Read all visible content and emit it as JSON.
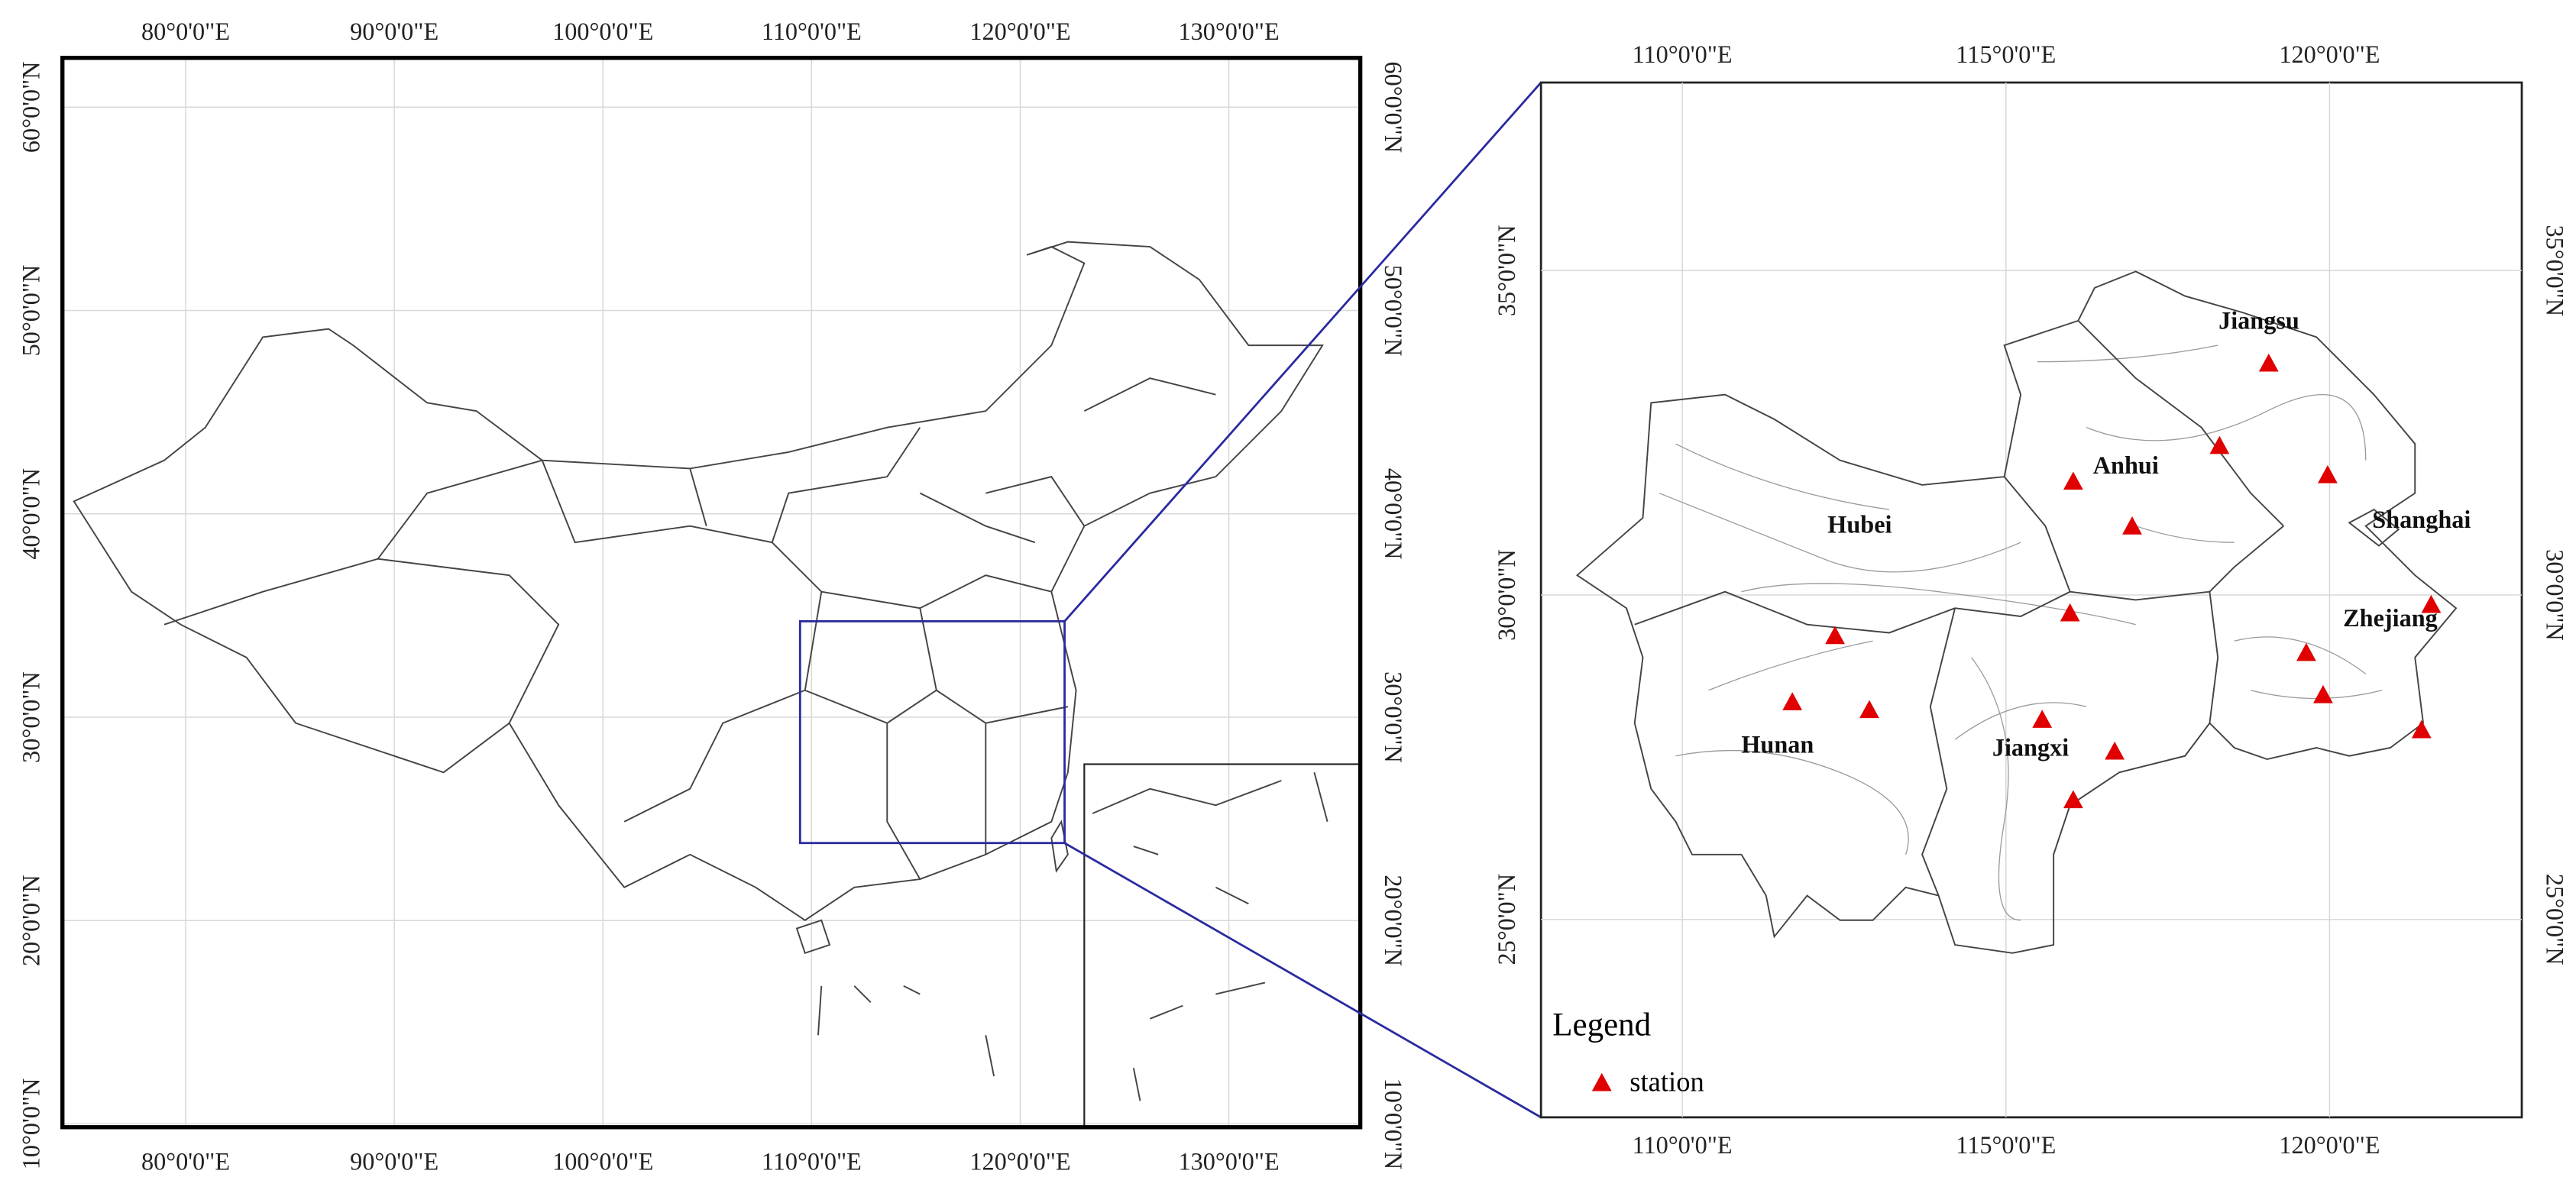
{
  "left_map": {
    "x_labels": [
      {
        "value": 80,
        "label": "80°0'0\"E"
      },
      {
        "value": 90,
        "label": "90°0'0\"E"
      },
      {
        "value": 100,
        "label": "100°0'0\"E"
      },
      {
        "value": 110,
        "label": "110°0'0\"E"
      },
      {
        "value": 120,
        "label": "120°0'0\"E"
      },
      {
        "value": 130,
        "label": "130°0'0\"E"
      }
    ],
    "y_labels": [
      {
        "value": 10,
        "label": "10°0'0\"N"
      },
      {
        "value": 20,
        "label": "20°0'0\"N"
      },
      {
        "value": 30,
        "label": "30°0'0\"N"
      },
      {
        "value": 40,
        "label": "40°0'0\"N"
      },
      {
        "value": 50,
        "label": "50°0'0\"N"
      },
      {
        "value": 60,
        "label": "60°0'0\"N"
      }
    ]
  },
  "right_map": {
    "x_labels": [
      {
        "value": 110,
        "label": "110°0'0\"E"
      },
      {
        "value": 115,
        "label": "115°0'0\"E"
      },
      {
        "value": 120,
        "label": "120°0'0\"E"
      }
    ],
    "y_labels": [
      {
        "value": 25,
        "label": "25°0'0\"N"
      },
      {
        "value": 30,
        "label": "30°0'0\"N"
      },
      {
        "value": 35,
        "label": "35°0'0\"N"
      }
    ],
    "provinces": [
      "Jiangsu",
      "Anhui",
      "Hubei",
      "Shanghai",
      "Zhejiang",
      "Hunan",
      "Jiangxi"
    ],
    "stations": [
      {
        "lon": 119.06,
        "lat": 33.57
      },
      {
        "lon": 118.3,
        "lat": 32.3
      },
      {
        "lon": 119.97,
        "lat": 31.85
      },
      {
        "lon": 116.04,
        "lat": 31.75
      },
      {
        "lon": 116.95,
        "lat": 31.06
      },
      {
        "lon": 115.99,
        "lat": 29.72
      },
      {
        "lon": 112.36,
        "lat": 29.37
      },
      {
        "lon": 111.7,
        "lat": 28.35
      },
      {
        "lon": 112.89,
        "lat": 28.23
      },
      {
        "lon": 115.56,
        "lat": 28.08
      },
      {
        "lon": 116.68,
        "lat": 27.59
      },
      {
        "lon": 116.04,
        "lat": 26.84
      },
      {
        "lon": 121.57,
        "lat": 29.85
      },
      {
        "lon": 119.64,
        "lat": 29.11
      },
      {
        "lon": 119.9,
        "lat": 28.46
      },
      {
        "lon": 121.42,
        "lat": 27.92
      }
    ]
  },
  "legend": {
    "title": "Legend",
    "items": [
      "station"
    ]
  }
}
